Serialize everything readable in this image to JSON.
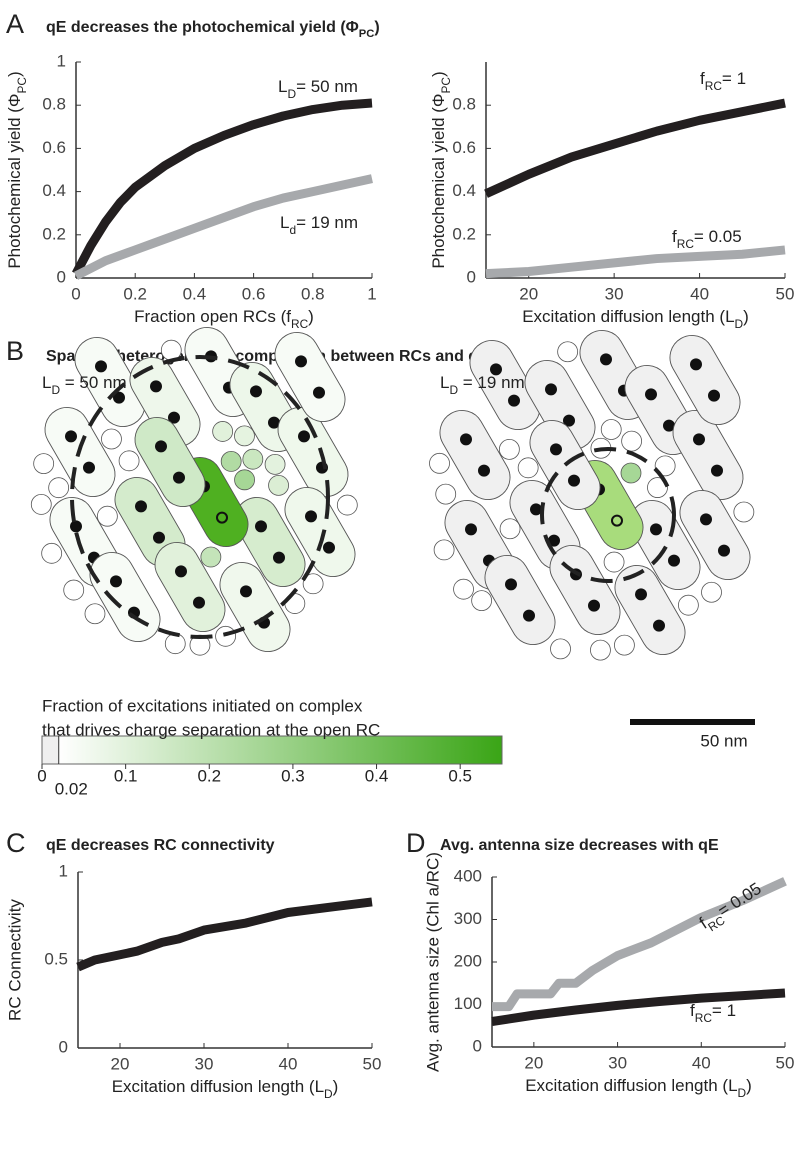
{
  "panel_labels": [
    "A",
    "B",
    "C",
    "D"
  ],
  "chart_data": [
    {
      "type": "line",
      "title": [
        "qE decreases the  photochemical yield (Φ",
        "PC",
        ")"
      ],
      "xlabel": [
        "Fraction open RCs (f",
        "RC",
        ")"
      ],
      "ylabel": [
        "Photochemical yield (Φ",
        "PC",
        ")"
      ],
      "xlim": [
        0,
        1
      ],
      "ylim": [
        0,
        1
      ],
      "xticks": [
        0,
        0.2,
        0.4,
        0.6,
        0.8,
        1
      ],
      "yticks": [
        0,
        0.2,
        0.4,
        0.6,
        0.8,
        1
      ],
      "series": [
        {
          "name": [
            "L",
            "D",
            "= 50 nm"
          ],
          "color": "#231f20",
          "x": [
            0,
            0.05,
            0.1,
            0.15,
            0.2,
            0.3,
            0.4,
            0.5,
            0.6,
            0.7,
            0.8,
            0.9,
            1
          ],
          "values": [
            0.02,
            0.15,
            0.26,
            0.35,
            0.42,
            0.52,
            0.6,
            0.66,
            0.71,
            0.75,
            0.78,
            0.8,
            0.81
          ]
        },
        {
          "name": [
            "L",
            "d",
            "= 19 nm"
          ],
          "color": "#a7a9ac",
          "x": [
            0,
            0.1,
            0.2,
            0.3,
            0.4,
            0.5,
            0.6,
            0.7,
            0.8,
            0.9,
            1
          ],
          "values": [
            0.01,
            0.08,
            0.13,
            0.18,
            0.23,
            0.28,
            0.33,
            0.37,
            0.4,
            0.43,
            0.46
          ]
        }
      ]
    },
    {
      "type": "line",
      "xlabel": [
        "Excitation diffusion length (L",
        "D",
        ")"
      ],
      "ylabel": [
        "Photochemical yield (Φ",
        "PC",
        ")"
      ],
      "xlim": [
        15,
        50
      ],
      "ylim": [
        0,
        1
      ],
      "xticks": [
        20,
        30,
        40,
        50
      ],
      "yticks": [
        0,
        0.2,
        0.4,
        0.6,
        0.8
      ],
      "series": [
        {
          "name": [
            "f",
            "RC",
            "= 1"
          ],
          "color": "#231f20",
          "x": [
            15,
            20,
            25,
            30,
            35,
            40,
            45,
            50
          ],
          "values": [
            0.39,
            0.48,
            0.56,
            0.62,
            0.68,
            0.73,
            0.77,
            0.81
          ]
        },
        {
          "name": [
            "f",
            "RC",
            "= 0.05"
          ],
          "color": "#a7a9ac",
          "x": [
            15,
            20,
            25,
            30,
            35,
            40,
            45,
            50
          ],
          "values": [
            0.02,
            0.03,
            0.05,
            0.07,
            0.09,
            0.1,
            0.11,
            0.13
          ]
        }
      ]
    },
    {
      "type": "line",
      "title": "qE decreases RC connectivity",
      "xlabel": [
        "Excitation diffusion length (L",
        "D",
        ")"
      ],
      "ylabel": "RC Connectivity",
      "xlim": [
        15,
        50
      ],
      "ylim": [
        0,
        1
      ],
      "xticks": [
        20,
        30,
        40,
        50
      ],
      "yticks": [
        0,
        0.5,
        1
      ],
      "series": [
        {
          "color": "#231f20",
          "x": [
            15,
            17,
            20,
            22,
            25,
            27,
            30,
            35,
            40,
            45,
            50
          ],
          "values": [
            0.46,
            0.5,
            0.53,
            0.55,
            0.6,
            0.62,
            0.67,
            0.71,
            0.77,
            0.8,
            0.83
          ]
        }
      ]
    },
    {
      "type": "line",
      "title": "Avg. antenna size decreases with qE",
      "xlabel": [
        "Excitation diffusion length (L",
        "D",
        ")"
      ],
      "ylabel": "Avg. antenna size (Chl a/RC)",
      "xlim": [
        15,
        50
      ],
      "ylim": [
        0,
        400
      ],
      "xticks": [
        20,
        30,
        40,
        50
      ],
      "yticks": [
        0,
        100,
        200,
        300,
        400
      ],
      "series": [
        {
          "name": [
            "f",
            "RC",
            "= 0.05"
          ],
          "color": "#a7a9ac",
          "x": [
            15,
            17,
            18,
            22,
            23,
            25,
            27,
            30,
            34,
            40,
            45,
            50
          ],
          "values": [
            95,
            95,
            125,
            125,
            150,
            150,
            180,
            215,
            245,
            305,
            345,
            390
          ]
        },
        {
          "name": [
            "f",
            "RC",
            "= 1"
          ],
          "color": "#231f20",
          "x": [
            15,
            20,
            25,
            30,
            35,
            40,
            45,
            50
          ],
          "values": [
            60,
            75,
            87,
            98,
            107,
            115,
            121,
            127
          ]
        }
      ]
    }
  ],
  "diagram": {
    "title": "Spatially heterogeneous competition between RCs and qE",
    "clusters": [
      {
        "label": [
          "L",
          "D",
          " = 50 nm"
        ]
      },
      {
        "label": [
          "L",
          "D",
          " = 19 nm"
        ]
      }
    ],
    "colorbar": {
      "title": [
        "Fraction of excitations initiated on complex",
        "that drives charge separation at the open RC"
      ],
      "lim": [
        0,
        0.55
      ],
      "ticks": [
        0,
        0.02,
        0.1,
        0.2,
        0.3,
        0.4,
        0.5
      ],
      "colors": [
        "#efefef",
        "#ffffff",
        "#3aa516"
      ]
    },
    "scale_bar": "50 nm"
  }
}
